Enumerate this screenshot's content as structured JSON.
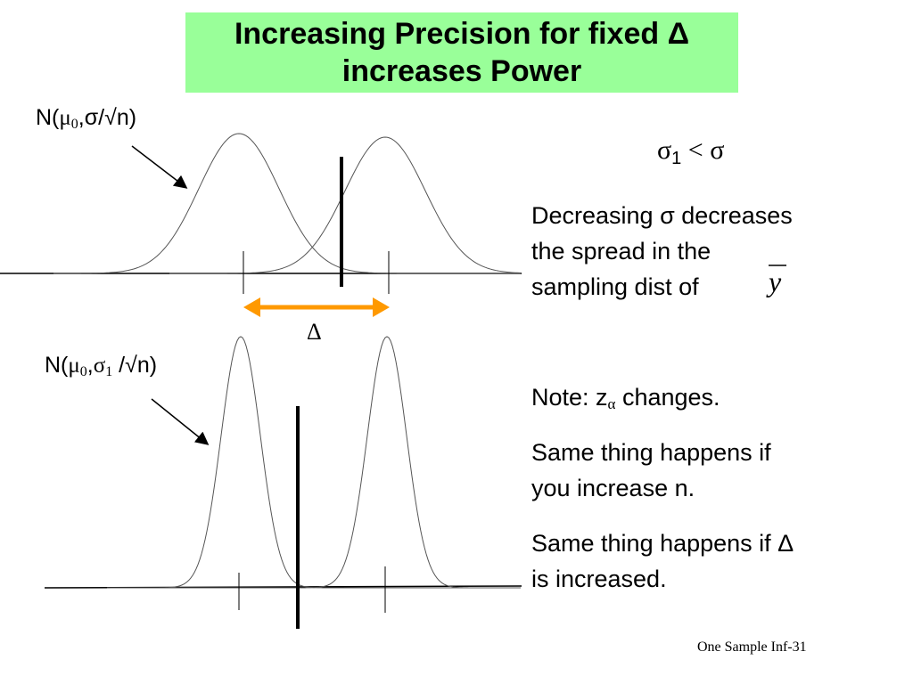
{
  "title": {
    "line1": "Increasing Precision for fixed Δ",
    "line2": "increases Power"
  },
  "top_label": {
    "prefix": "N(",
    "mu": "μ",
    "mu_sub": "0",
    "rest": ",σ/√n)"
  },
  "bottom_label": {
    "prefix": "N(",
    "mu": "μ",
    "mu_sub": "0",
    "sep": ",",
    "sigma": "σ",
    "sigma_sub": "1",
    "rest": " /√n)"
  },
  "delta_symbol": "Δ",
  "sigma_relation": {
    "sigma": "σ",
    "sub": "1",
    "rest": " < σ"
  },
  "text": {
    "p1_line1": "Decreasing σ decreases",
    "p1_line2": "the spread in the",
    "p1_line3": "sampling dist of",
    "ybar": "y",
    "note_prefix": "Note: z",
    "note_sub": "α",
    "note_rest": " changes.",
    "p3_line1": "Same thing happens if",
    "p3_line2": "you increase n.",
    "p4_line1": "Same thing happens if Δ",
    "p4_line2": "is increased."
  },
  "footer": "One Sample Inf-31",
  "colors": {
    "title_bg": "#99ff99",
    "arrow": "#ff9900"
  }
}
